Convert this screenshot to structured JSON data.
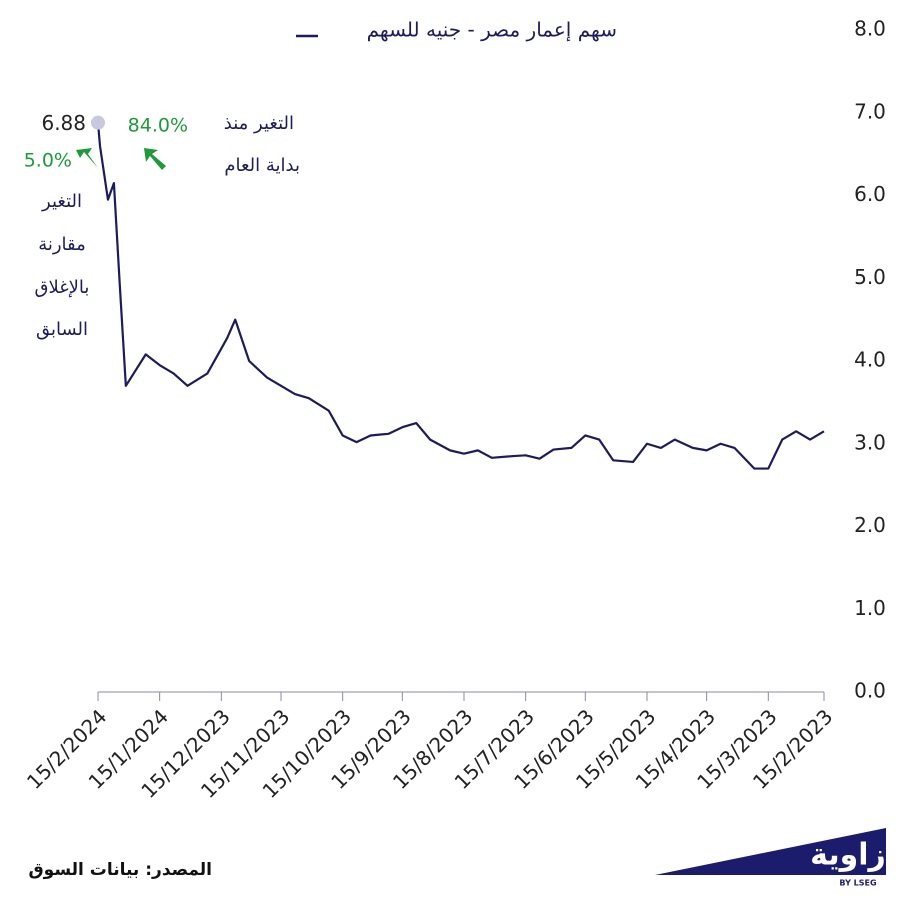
{
  "chart_data": {
    "type": "line",
    "series": [
      {
        "name": "سهم إعمار مصر - جنيه للسهم",
        "color": "#1c1c5c",
        "x": [
          "15/2/2023",
          "22/2/2023",
          "1/3/2023",
          "8/3/2023",
          "15/3/2023",
          "22/3/2023",
          "1/4/2023",
          "8/4/2023",
          "15/4/2023",
          "22/4/2023",
          "1/5/2023",
          "8/5/2023",
          "15/5/2023",
          "22/5/2023",
          "1/6/2023",
          "8/6/2023",
          "15/6/2023",
          "22/6/2023",
          "1/7/2023",
          "8/7/2023",
          "15/7/2023",
          "22/7/2023",
          "1/8/2023",
          "8/8/2023",
          "15/8/2023",
          "22/8/2023",
          "1/9/2023",
          "8/9/2023",
          "15/9/2023",
          "22/9/2023",
          "1/10/2023",
          "8/10/2023",
          "15/10/2023",
          "22/10/2023",
          "1/11/2023",
          "8/11/2023",
          "15/11/2023",
          "22/11/2023",
          "1/12/2023",
          "8/12/2023",
          "12/12/2023",
          "15/12/2023",
          "22/12/2023",
          "1/1/2024",
          "8/1/2024",
          "15/1/2024",
          "22/1/2024",
          "1/2/2024",
          "4/2/2024",
          "7/2/2024",
          "10/2/2024",
          "14/2/2024",
          "15/2/2024"
        ],
        "values": [
          3.15,
          3.05,
          3.15,
          3.05,
          2.7,
          2.7,
          2.95,
          3.0,
          2.92,
          2.95,
          3.05,
          2.95,
          3.0,
          2.78,
          2.8,
          3.05,
          3.1,
          2.95,
          2.93,
          2.82,
          2.86,
          2.85,
          2.83,
          2.92,
          2.88,
          2.92,
          3.05,
          3.25,
          3.2,
          3.12,
          3.1,
          3.02,
          3.1,
          3.4,
          3.55,
          3.6,
          3.7,
          3.8,
          4.0,
          4.5,
          4.28,
          4.15,
          3.85,
          3.7,
          3.85,
          3.95,
          4.08,
          3.7,
          4.9,
          6.15,
          5.95,
          6.6,
          6.88
        ]
      }
    ],
    "xlim": [
      "15/2/2024",
      "15/2/2023"
    ],
    "xticks": [
      "15/2/2024",
      "15/1/2024",
      "15/12/2023",
      "15/11/2023",
      "15/10/2023",
      "15/9/2023",
      "15/8/2023",
      "15/7/2023",
      "15/6/2023",
      "15/5/2023",
      "15/4/2023",
      "15/3/2023",
      "15/2/2023"
    ],
    "ylim": [
      0,
      8
    ],
    "yticks": [
      {
        "value": 0,
        "label": "0.0"
      },
      {
        "value": 1,
        "label": "1.0"
      },
      {
        "value": 2,
        "label": "2.0"
      },
      {
        "value": 3,
        "label": "3.0"
      },
      {
        "value": 4,
        "label": "4.0"
      },
      {
        "value": 5,
        "label": "5.0"
      },
      {
        "value": 6,
        "label": "6.0"
      },
      {
        "value": 7,
        "label": "7.0"
      },
      {
        "value": 8,
        "label": "8.0"
      }
    ],
    "annotations": [
      {
        "value": 5.0,
        "label": "5.0%",
        "text": [
          "التغير",
          "مقارنة",
          "بالإغلاق",
          "السابق"
        ]
      },
      {
        "value": 84.0,
        "label": "84.0%",
        "text": [
          "التغير منذ",
          "بداية العام"
        ]
      }
    ],
    "source": "المصدر: بيانات السوق",
    "logo": "زاوية",
    "logo_sub": "BY LSEG"
  }
}
